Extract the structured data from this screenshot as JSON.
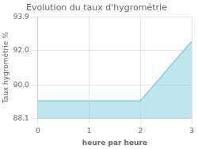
{
  "chart_data": {
    "type": "area",
    "title": "Evolution du taux d'hygrométrie",
    "x_label": "heure par heure",
    "y_label": "Taux hygrométrie %",
    "x": [
      0,
      2,
      3
    ],
    "values": [
      89.1,
      89.1,
      92.5
    ],
    "color": "#7ecfe0",
    "xlim": [
      0,
      3
    ],
    "xticks": [
      0,
      1,
      2,
      3
    ],
    "ylim": [
      88.1,
      93.9
    ],
    "yticks": [
      88.1,
      {
        "value": 90,
        "label": "90.0"
      },
      {
        "value": 92,
        "label": "92.0"
      },
      93.9
    ],
    "grid": true
  }
}
